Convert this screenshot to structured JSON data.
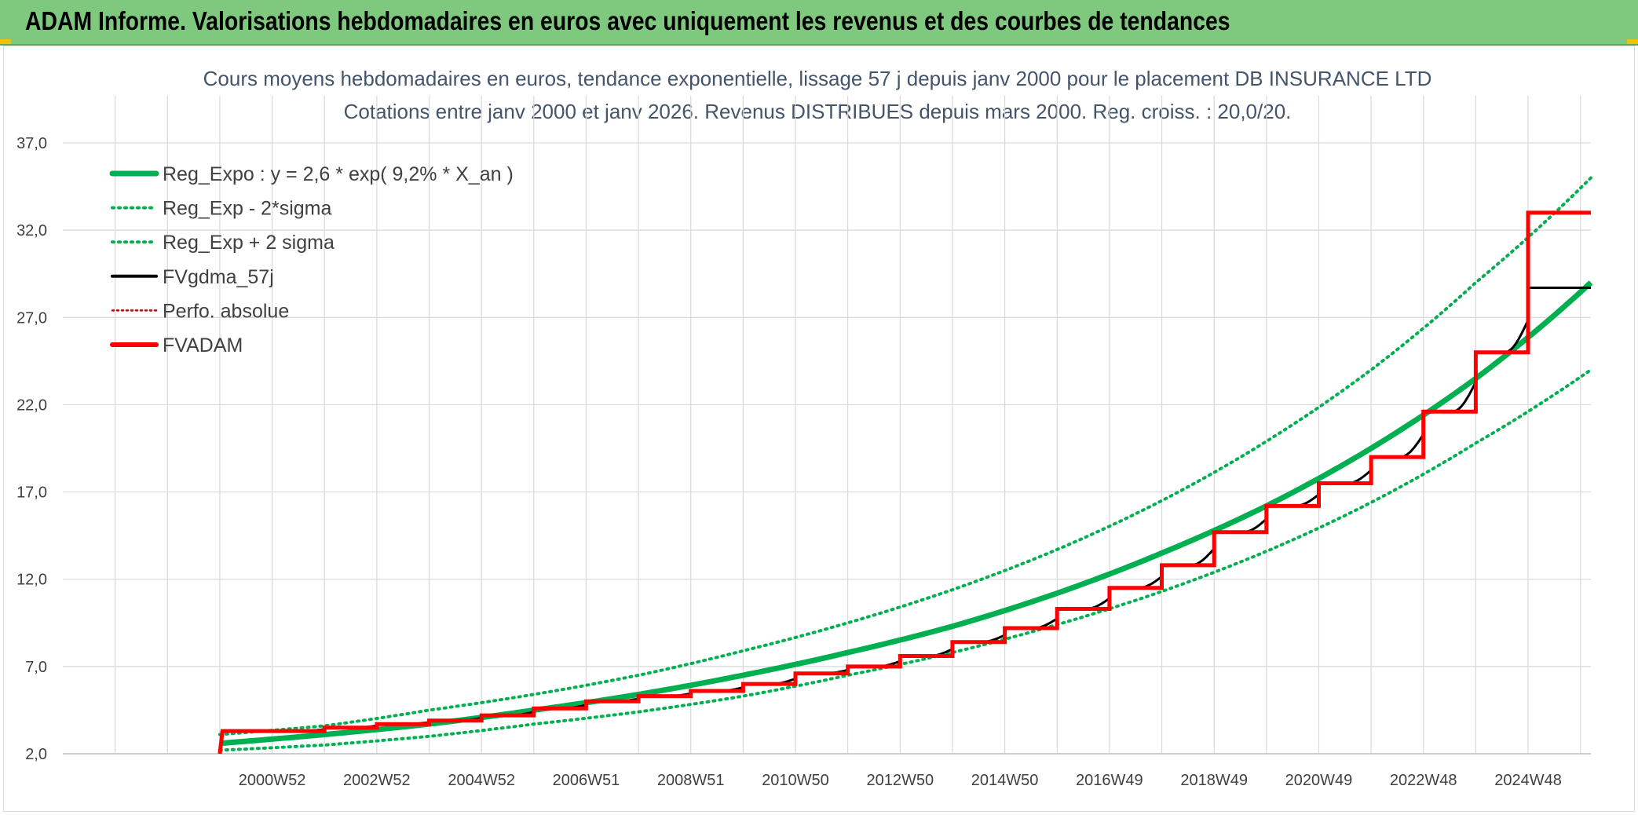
{
  "header": {
    "title": "ADAM Informe. Valorisations hebdomadaires en euros avec uniquement les revenus et des courbes de tendances"
  },
  "colors": {
    "header_bg": "#7fc97f",
    "reg_expo": "#00b050",
    "bands": "#00b050",
    "fvgdma": "#000000",
    "perfo": "#c00000",
    "fvadam": "#ff0000",
    "grid": "#d9d9d9"
  },
  "chart_data": {
    "type": "line",
    "title_line1": "Cours moyens hebdomadaires en euros, tendance exponentielle, lissage 57 j depuis janv 2000 pour le placement DB INSURANCE LTD",
    "title_line2": "Cotations entre janv 2000 et janv 2026. Revenus DISTRIBUES depuis mars 2000. Reg. croiss. : 20,0/20.",
    "ylim": [
      2.0,
      37.0
    ],
    "yticks": [
      "2,0",
      "7,0",
      "12,0",
      "17,0",
      "22,0",
      "27,0",
      "32,0",
      "37,0"
    ],
    "xlim": [
      -3.0,
      26.2
    ],
    "xticks": [
      {
        "label": "2000W52",
        "x": 1.0
      },
      {
        "label": "2002W52",
        "x": 3.0
      },
      {
        "label": "2004W52",
        "x": 5.0
      },
      {
        "label": "2006W51",
        "x": 7.0
      },
      {
        "label": "2008W51",
        "x": 9.0
      },
      {
        "label": "2010W50",
        "x": 11.0
      },
      {
        "label": "2012W50",
        "x": 13.0
      },
      {
        "label": "2014W50",
        "x": 15.0
      },
      {
        "label": "2016W49",
        "x": 17.0
      },
      {
        "label": "2018W49",
        "x": 19.0
      },
      {
        "label": "2020W49",
        "x": 21.0
      },
      {
        "label": "2022W48",
        "x": 23.0
      },
      {
        "label": "2024W48",
        "x": 25.0
      }
    ],
    "legend_position": "top-left",
    "series": [
      {
        "name": "Reg_Expo : y = 2,6 * exp( 9,2% *  X_an )",
        "style": "solid-thick",
        "x": [
          0,
          2,
          4,
          6,
          8,
          10,
          12,
          14,
          16,
          18,
          20,
          22,
          24,
          26.2
        ],
        "y": [
          2.6,
          3.1,
          3.7,
          4.5,
          5.4,
          6.5,
          7.8,
          9.3,
          11.2,
          13.5,
          16.2,
          19.5,
          23.5,
          29.0
        ]
      },
      {
        "name": "Reg_Exp - 2*sigma",
        "style": "dotted",
        "x": [
          0,
          2,
          4,
          6,
          8,
          10,
          12,
          14,
          16,
          18,
          20,
          22,
          24,
          26.2
        ],
        "y": [
          2.2,
          2.5,
          3.0,
          3.7,
          4.4,
          5.3,
          6.5,
          7.8,
          9.4,
          11.3,
          13.6,
          16.4,
          19.8,
          24.0
        ]
      },
      {
        "name": "Reg_Exp + 2 sigma",
        "style": "dotted",
        "x": [
          0,
          2,
          4,
          6,
          8,
          10,
          12,
          14,
          16,
          18,
          20,
          22,
          24,
          26.2
        ],
        "y": [
          3.1,
          3.6,
          4.5,
          5.4,
          6.5,
          7.9,
          9.5,
          11.4,
          13.7,
          16.5,
          19.9,
          24.0,
          29.0,
          35.0
        ]
      },
      {
        "name": "FVgdma_57j",
        "style": "solid-thin"
      },
      {
        "name": "Perfo. absolue",
        "style": "dotted-red"
      },
      {
        "name": "FVADAM",
        "style": "steps",
        "x": [
          0.0,
          0.05,
          2,
          3,
          4,
          5,
          6,
          7,
          8,
          9,
          10,
          11,
          12,
          13,
          14,
          15,
          16,
          17,
          18,
          19,
          20,
          21,
          22,
          23,
          24,
          25,
          26.2
        ],
        "y": [
          2.0,
          3.3,
          3.5,
          3.7,
          3.9,
          4.2,
          4.6,
          5.0,
          5.3,
          5.6,
          6.0,
          6.6,
          7.0,
          7.6,
          8.4,
          9.2,
          10.3,
          11.5,
          12.8,
          14.7,
          16.2,
          17.5,
          19.0,
          21.6,
          25.0,
          28.7,
          33.0
        ]
      }
    ]
  }
}
